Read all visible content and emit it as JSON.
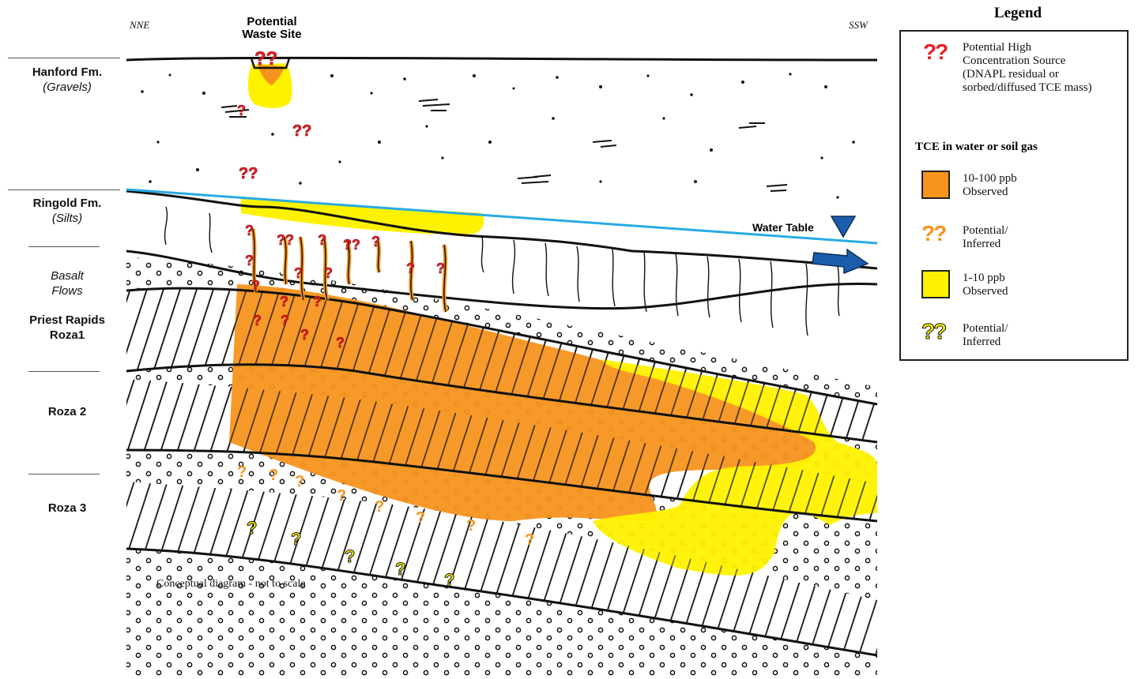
{
  "orientation": {
    "left": "NNE",
    "right": "SSW"
  },
  "waste_site_label": "Potential\nWaste Site",
  "water_table_label": "Water Table",
  "caption": "Conceptual diagram - not to scale",
  "units": [
    {
      "name": "Hanford Fm.",
      "sub": "(Gravels)",
      "style": "bold"
    },
    {
      "name": "Ringold Fm.",
      "sub": "(Silts)",
      "style": "bold"
    },
    {
      "name": "Basalt\nFlows",
      "sub": "",
      "style": "italic"
    },
    {
      "name": "Priest Rapids\nRoza1",
      "sub": "",
      "style": "bold"
    },
    {
      "name": "Roza 2",
      "sub": "",
      "style": "bold"
    },
    {
      "name": "Roza 3",
      "sub": "",
      "style": "bold"
    }
  ],
  "legend": {
    "title": "Legend",
    "source_text": "Potential High\nConcentration Source\n(DNAPL residual or\nsorbed/diffused TCE mass)",
    "tce_heading": "TCE in water or soil gas",
    "items": [
      {
        "kind": "swatch",
        "color": "#f7941d",
        "text": "10-100 ppb\nObserved"
      },
      {
        "kind": "question",
        "color": "#f7941d",
        "text": "Potential/\nInferred"
      },
      {
        "kind": "swatch",
        "color": "#fff200",
        "text": "1-10 ppb\nObserved"
      },
      {
        "kind": "question",
        "color": "#fff200",
        "text": "Potential/\nInferred"
      }
    ]
  },
  "colors": {
    "high_source": "#e8202a",
    "tce_10_100": "#f7941d",
    "tce_1_10": "#fff200",
    "water_table": "#29abe2",
    "flow_arrow": "#1b5eab",
    "outline": "#111111"
  }
}
